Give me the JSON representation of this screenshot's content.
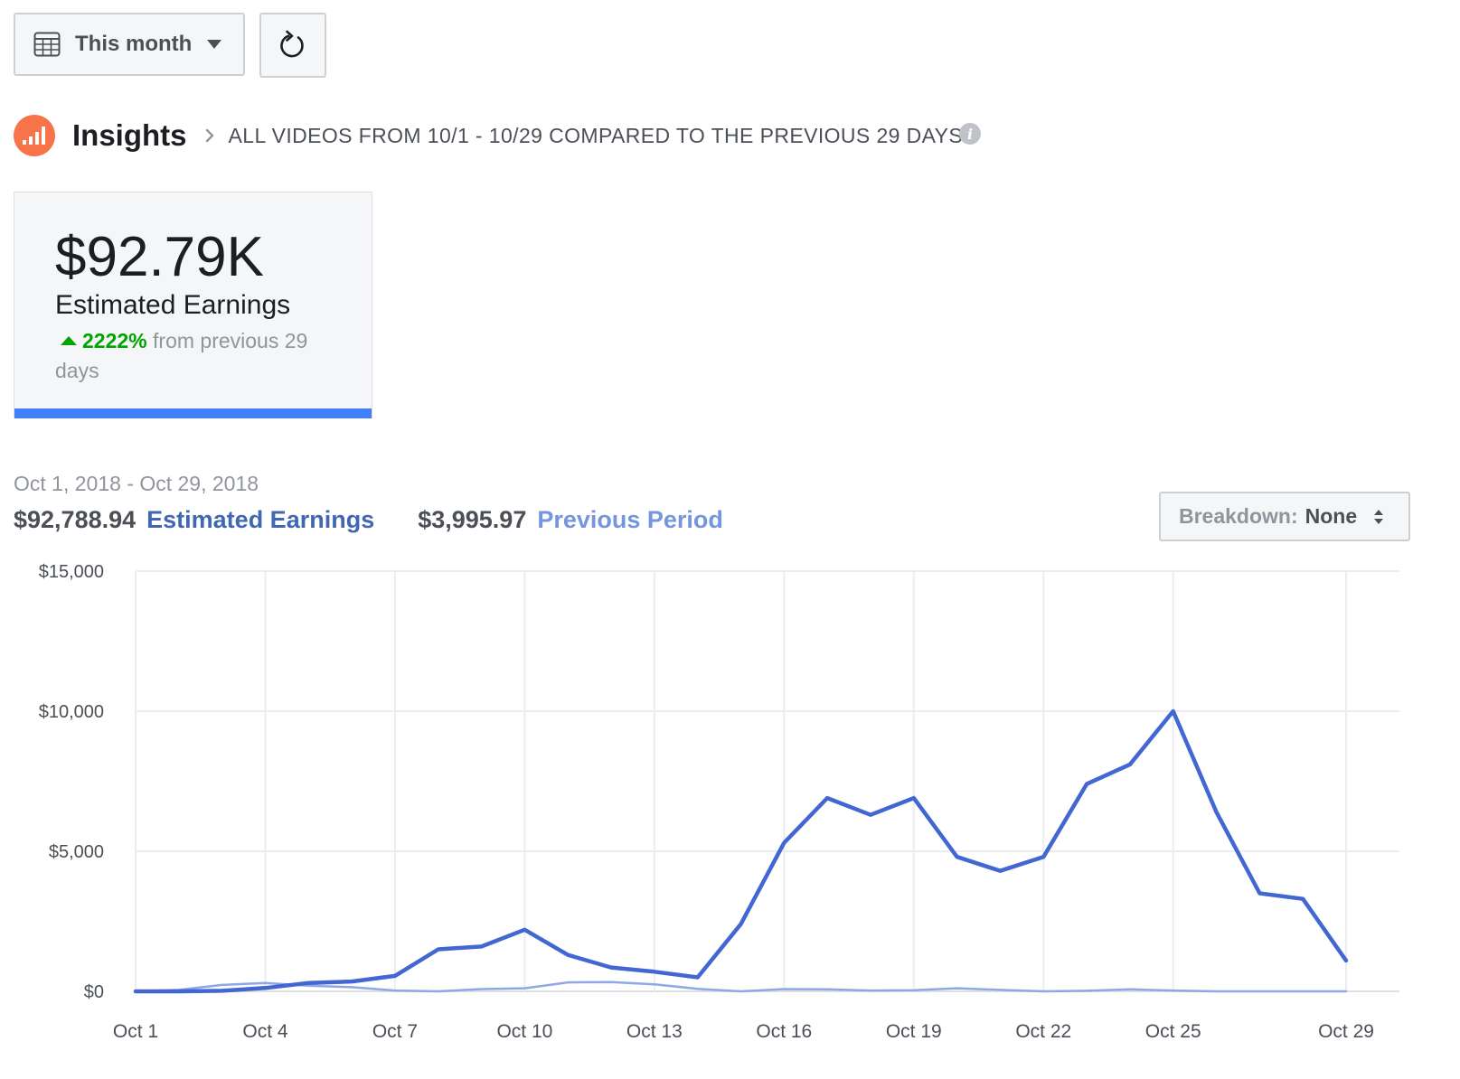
{
  "toolbar": {
    "date_range_label": "This month",
    "icons": {
      "calendar": "calendar-icon",
      "caret": "caret-down-icon",
      "refresh": "refresh-icon"
    }
  },
  "header": {
    "title": "Insights",
    "subtitle": "ALL VIDEOS FROM 10/1 - 10/29 COMPARED TO THE PREVIOUS 29 DAYS",
    "info_glyph": "i"
  },
  "metric_card": {
    "value": "$92.79K",
    "label": "Estimated Earnings",
    "change_pct": "2222%",
    "change_text": " from previous 29 days",
    "accent_color": "#4080ff"
  },
  "summary": {
    "date_range": "Oct 1, 2018 - Oct 29, 2018",
    "current_value": "$92,788.94",
    "current_label": "Estimated Earnings",
    "previous_value": "$3,995.97",
    "previous_label": "Previous Period"
  },
  "breakdown": {
    "label": "Breakdown:",
    "value": "None"
  },
  "chart_data": {
    "type": "line",
    "x": [
      "Oct 1",
      "Oct 2",
      "Oct 3",
      "Oct 4",
      "Oct 5",
      "Oct 6",
      "Oct 7",
      "Oct 8",
      "Oct 9",
      "Oct 10",
      "Oct 11",
      "Oct 12",
      "Oct 13",
      "Oct 14",
      "Oct 15",
      "Oct 16",
      "Oct 17",
      "Oct 18",
      "Oct 19",
      "Oct 20",
      "Oct 21",
      "Oct 22",
      "Oct 23",
      "Oct 24",
      "Oct 25",
      "Oct 26",
      "Oct 27",
      "Oct 28",
      "Oct 29"
    ],
    "xticks": [
      "Oct 1",
      "Oct 4",
      "Oct 7",
      "Oct 10",
      "Oct 13",
      "Oct 16",
      "Oct 19",
      "Oct 22",
      "Oct 25",
      "Oct 29"
    ],
    "yticks": [
      "$15,000",
      "$10,000",
      "$5,000",
      "$0"
    ],
    "ylim": [
      0,
      15000
    ],
    "grid": true,
    "series": [
      {
        "name": "Estimated Earnings",
        "color": "#4267d2",
        "values": [
          0,
          0,
          20,
          120,
          300,
          350,
          550,
          1500,
          1600,
          2200,
          1300,
          850,
          700,
          500,
          2400,
          5300,
          6900,
          6300,
          6900,
          4800,
          4300,
          4800,
          7400,
          8100,
          10000,
          6400,
          3500,
          3300,
          1100
        ]
      },
      {
        "name": "Previous Period",
        "color": "#8fa7e6",
        "values": [
          0,
          50,
          230,
          300,
          200,
          150,
          30,
          0,
          80,
          110,
          320,
          330,
          250,
          90,
          0,
          80,
          70,
          30,
          40,
          110,
          50,
          0,
          20,
          70,
          30,
          0,
          0,
          0,
          0
        ]
      }
    ]
  }
}
